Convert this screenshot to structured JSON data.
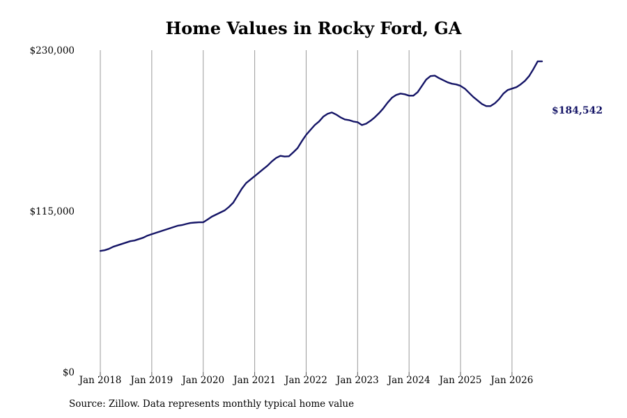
{
  "chart_data": {
    "type": "line",
    "title": "Home Values in Rocky Ford, GA",
    "xlabel": "",
    "ylabel": "",
    "ylim": [
      0,
      230000
    ],
    "xlim": [
      "2018-01",
      "2026-08"
    ],
    "grid": {
      "vertical": true,
      "horizontal": false
    },
    "y_ticks": [
      0,
      115000,
      230000
    ],
    "y_tick_labels": [
      "$0",
      "$115,000",
      "$230,000"
    ],
    "x_ticks": [
      "2018-01",
      "2019-01",
      "2020-01",
      "2021-01",
      "2022-01",
      "2023-01",
      "2024-01",
      "2025-01",
      "2026-01"
    ],
    "x_tick_labels": [
      "Jan 2018",
      "Jan 2019",
      "Jan 2020",
      "Jan 2021",
      "Jan 2022",
      "Jan 2023",
      "Jan 2024",
      "Jan 2025",
      "Jan 2026"
    ],
    "line_color": "#141466",
    "series": [
      {
        "x": [
          "2018-01",
          "2018-02",
          "2018-03",
          "2018-04",
          "2018-05",
          "2018-06",
          "2018-07",
          "2018-08",
          "2018-09",
          "2018-10",
          "2018-11",
          "2018-12",
          "2019-01",
          "2019-02",
          "2019-03",
          "2019-04",
          "2019-05",
          "2019-06",
          "2019-07",
          "2019-08",
          "2019-09",
          "2019-10",
          "2019-11",
          "2019-12",
          "2020-01",
          "2020-02",
          "2020-03",
          "2020-04",
          "2020-05",
          "2020-06",
          "2020-07",
          "2020-08",
          "2020-09",
          "2020-10",
          "2020-11",
          "2020-12",
          "2021-01",
          "2021-02",
          "2021-03",
          "2021-04",
          "2021-05",
          "2021-06",
          "2021-07",
          "2021-08",
          "2021-09",
          "2021-10",
          "2021-11",
          "2021-12",
          "2022-01",
          "2022-02",
          "2022-03",
          "2022-04",
          "2022-05",
          "2022-06",
          "2022-07",
          "2022-08",
          "2022-09",
          "2022-10",
          "2022-11",
          "2022-12",
          "2023-01",
          "2023-02",
          "2023-03",
          "2023-04",
          "2023-05",
          "2023-06",
          "2023-07",
          "2023-08",
          "2023-09",
          "2023-10",
          "2023-11",
          "2023-12",
          "2024-01",
          "2024-02",
          "2024-03",
          "2024-04",
          "2024-05",
          "2024-06",
          "2024-07",
          "2024-08",
          "2024-09",
          "2024-10",
          "2024-11",
          "2024-12",
          "2025-01",
          "2025-02",
          "2025-03",
          "2025-04",
          "2025-05",
          "2025-06",
          "2025-07",
          "2025-08",
          "2025-09",
          "2025-10",
          "2025-11",
          "2025-12",
          "2026-01",
          "2026-02",
          "2026-03",
          "2026-04",
          "2026-05",
          "2026-06",
          "2026-07",
          "2026-08"
        ],
        "values": [
          86500,
          87000,
          88000,
          89500,
          90500,
          91500,
          92500,
          93500,
          94000,
          95000,
          96000,
          97500,
          98500,
          99500,
          100500,
          101500,
          102500,
          103500,
          104500,
          105000,
          105800,
          106500,
          106800,
          107000,
          107000,
          109000,
          111000,
          112500,
          114000,
          115500,
          118000,
          121000,
          126000,
          131000,
          135000,
          137500,
          140000,
          142500,
          145000,
          147500,
          150500,
          153000,
          154500,
          154000,
          154200,
          157000,
          160000,
          165000,
          169500,
          173000,
          176500,
          179000,
          182500,
          184500,
          185500,
          184000,
          182000,
          180500,
          180000,
          179000,
          178500,
          176500,
          177500,
          179500,
          182000,
          185000,
          188500,
          192500,
          196000,
          198000,
          199000,
          198500,
          197500,
          197500,
          200000,
          204500,
          209000,
          211500,
          211800,
          210000,
          208500,
          207000,
          206000,
          205500,
          204500,
          202500,
          199500,
          196500,
          194000,
          191500,
          190000,
          190000,
          192000,
          195000,
          199000,
          201500,
          202500,
          203500,
          205500,
          208000,
          211500,
          216500,
          222000,
          184542
        ],
        "end_label": "$184,542"
      }
    ]
  },
  "source": "Source: Zillow. Data represents monthly typical home value"
}
